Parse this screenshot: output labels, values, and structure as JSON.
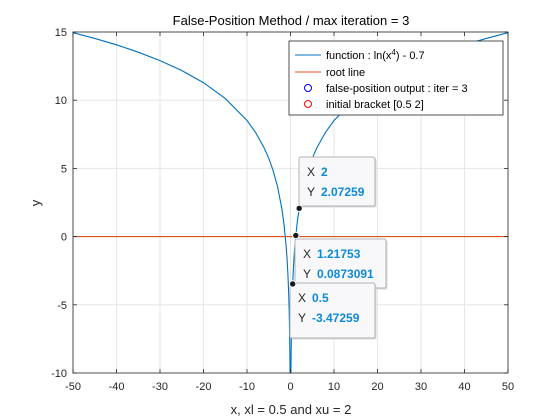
{
  "chart_data": {
    "type": "line",
    "title": "False-Position Method / max iteration = 3",
    "xlabel": "x, xl = 0.5 and xu = 2",
    "ylabel": "y",
    "xlim": [
      -50,
      50
    ],
    "ylim": [
      -10,
      15
    ],
    "xticks": [
      -50,
      -40,
      -30,
      -20,
      -10,
      0,
      10,
      20,
      30,
      40,
      50
    ],
    "xtick_labels": [
      "-50",
      "-40",
      "-30",
      "-20",
      "-10",
      "0",
      "10",
      "20",
      "30",
      "40",
      "50"
    ],
    "yticks": [
      -10,
      -5,
      0,
      5,
      10,
      15
    ],
    "ytick_labels": [
      "-10",
      "-5",
      "0",
      "5",
      "10",
      "15"
    ],
    "grid": true,
    "legend_position": "top-right",
    "series": [
      {
        "name": "function : ln(x⁴) - 0.7",
        "legend_main": "function : ln(x",
        "legend_sup": "4",
        "legend_tail": ") - 0.7",
        "kind": "line",
        "color": "#0072BD",
        "x": [
          -50,
          -45,
          -40,
          -35,
          -30,
          -25,
          -20,
          -15,
          -10,
          -8,
          -6,
          -5,
          -4,
          -3,
          -2,
          -1.5,
          -1,
          -0.8,
          -0.6,
          -0.5,
          -0.4,
          -0.3,
          -0.2,
          -0.15,
          -0.1,
          0.1,
          0.15,
          0.2,
          0.3,
          0.4,
          0.5,
          0.6,
          0.8,
          1,
          1.5,
          2,
          3,
          4,
          5,
          6,
          8,
          10,
          15,
          20,
          25,
          30,
          35,
          40,
          45,
          50
        ],
        "y": [
          14.95,
          14.53,
          14.06,
          13.52,
          12.9,
          12.18,
          11.28,
          10.13,
          8.51,
          7.62,
          6.47,
          5.74,
          4.85,
          3.69,
          2.07,
          0.92,
          -0.7,
          -1.59,
          -2.74,
          -3.47,
          -4.36,
          -5.52,
          -7.14,
          -8.29,
          -9.91,
          -9.91,
          -8.29,
          -7.14,
          -5.52,
          -4.36,
          -3.47,
          -2.74,
          -1.59,
          -0.7,
          0.92,
          2.07,
          3.69,
          4.85,
          5.74,
          6.47,
          7.62,
          8.51,
          10.13,
          11.28,
          12.18,
          12.9,
          13.52,
          14.06,
          14.53,
          14.95
        ]
      },
      {
        "name": "root line",
        "kind": "line",
        "color": "#D95319",
        "x": [
          -50,
          50
        ],
        "y": [
          0,
          0
        ]
      },
      {
        "name": "false-position output : iter = 3",
        "kind": "marker",
        "color": "#0000FF",
        "x": [
          1.21753
        ],
        "y": [
          0.0873091
        ]
      },
      {
        "name": "initial bracket [0.5 2]",
        "kind": "marker",
        "color": "#FF0000",
        "x": [
          0.5,
          2
        ],
        "y": [
          -3.47259,
          2.07259
        ]
      }
    ],
    "datatips": [
      {
        "x_label": "X",
        "x_value": "2",
        "y_label": "Y",
        "y_value": "2.07259",
        "x": 2,
        "y": 2.07259
      },
      {
        "x_label": "X",
        "x_value": "1.21753",
        "y_label": "Y",
        "y_value": "0.0873091",
        "x": 1.21753,
        "y": 0.0873091
      },
      {
        "x_label": "X",
        "x_value": "0.5",
        "y_label": "Y",
        "y_value": "-3.47259",
        "x": 0.5,
        "y": -3.47259
      }
    ]
  }
}
